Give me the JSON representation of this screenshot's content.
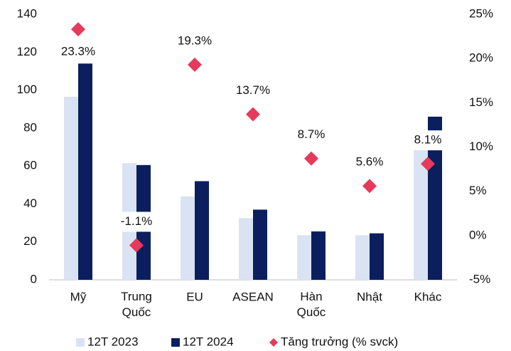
{
  "chart_data": {
    "type": "bar_line",
    "categories": [
      "Mỹ",
      "Trung Quốc",
      "EU",
      "ASEAN",
      "Hàn Quốc",
      "Nhật",
      "Khác"
    ],
    "series": [
      {
        "name": "12T 2023",
        "type": "bar",
        "color": "#dae3f3",
        "values": [
          96.5,
          61.5,
          44,
          32.5,
          23.5,
          23.5,
          70
        ]
      },
      {
        "name": "12T 2024",
        "type": "bar",
        "color": "#0b1f5e",
        "values": [
          114,
          60.5,
          52,
          37,
          25.5,
          24.5,
          86
        ]
      },
      {
        "name": "Tăng trưởng (% svck)",
        "type": "scatter",
        "axis": "y2",
        "color": "#e63a5c",
        "values": [
          23.3,
          -1.1,
          19.3,
          13.7,
          8.7,
          5.6,
          8.1
        ],
        "value_labels": [
          "23.3%",
          "-1.1%",
          "19.3%",
          "13.7%",
          "8.7%",
          "5.6%",
          "8.1%"
        ]
      }
    ],
    "ylim": [
      0,
      140
    ],
    "yticks": [
      0,
      20,
      40,
      60,
      80,
      100,
      120,
      140
    ],
    "y2lim": [
      -5,
      25
    ],
    "y2ticks": [
      {
        "value": -5,
        "label": "-5%"
      },
      {
        "value": 0,
        "label": "0%"
      },
      {
        "value": 5,
        "label": "5%"
      },
      {
        "value": 10,
        "label": "10%"
      },
      {
        "value": 15,
        "label": "15%"
      },
      {
        "value": 20,
        "label": "20%"
      },
      {
        "value": 25,
        "label": "25%"
      }
    ],
    "legend": "bottom"
  }
}
